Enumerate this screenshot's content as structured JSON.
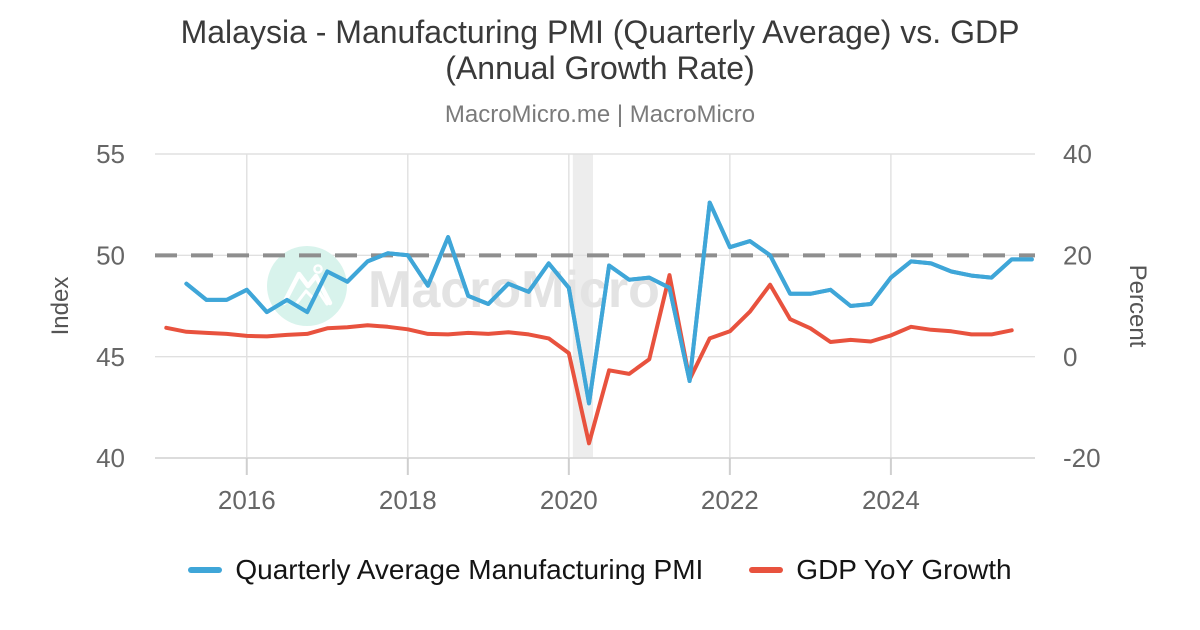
{
  "title": {
    "line1": "Malaysia - Manufacturing PMI (Quarterly Average) vs. GDP",
    "line2": "(Annual Growth Rate)"
  },
  "subtitle": "MacroMicro.me | MacroMicro",
  "watermark": {
    "text": "MacroMicro",
    "logo": "mountain-logo"
  },
  "axes": {
    "left": {
      "label": "Index",
      "ticks": [
        55,
        50,
        45,
        40
      ],
      "range": [
        40,
        55
      ]
    },
    "right": {
      "label": "Percent",
      "ticks": [
        40,
        20,
        0,
        -20
      ],
      "range": [
        -20,
        40
      ]
    },
    "x": {
      "tick_labels": [
        "2016",
        "2018",
        "2020",
        "2022",
        "2024"
      ],
      "tick_years": [
        2016,
        2018,
        2020,
        2022,
        2024
      ],
      "range_years": [
        2014.86,
        2025.79
      ]
    }
  },
  "chart_data": {
    "type": "line",
    "title": "Malaysia - Manufacturing PMI (Quarterly Average) vs. GDP (Annual Growth Rate)",
    "grid": true,
    "legend_position": "bottom",
    "reference_line": {
      "axis": "left",
      "value": 50,
      "style": "dashed"
    },
    "recession_band": {
      "x_from_year": 2020.05,
      "x_to_year": 2020.3
    },
    "series": [
      {
        "name": "Quarterly Average Manufacturing PMI",
        "axis": "left",
        "color": "#3fa6d8",
        "first_quarter": "2015-Q2",
        "x_start_year": 2015.25,
        "x_step_years": 0.25,
        "values": [
          48.6,
          47.8,
          47.8,
          48.3,
          47.2,
          47.8,
          47.2,
          49.2,
          48.7,
          49.7,
          50.1,
          50.0,
          48.5,
          50.9,
          48.0,
          47.6,
          48.6,
          48.2,
          49.6,
          48.4,
          42.7,
          49.5,
          48.8,
          48.9,
          48.4,
          43.8,
          52.6,
          50.4,
          50.7,
          50.0,
          48.1,
          48.1,
          48.3,
          47.5,
          47.6,
          48.9,
          49.7,
          49.6,
          49.2,
          49.0,
          48.9,
          49.8,
          49.8
        ]
      },
      {
        "name": "GDP YoY Growth",
        "axis": "right",
        "color": "#e8523e",
        "first_quarter": "2015-Q1",
        "x_start_year": 2015.0,
        "x_step_years": 0.25,
        "values": [
          5.7,
          4.9,
          4.7,
          4.5,
          4.1,
          4.0,
          4.3,
          4.5,
          5.6,
          5.8,
          6.2,
          5.9,
          5.4,
          4.5,
          4.4,
          4.7,
          4.5,
          4.8,
          4.4,
          3.6,
          0.7,
          -17.1,
          -2.7,
          -3.4,
          -0.5,
          16.1,
          -4.5,
          3.6,
          5.0,
          8.9,
          14.2,
          7.4,
          5.6,
          2.9,
          3.3,
          3.0,
          4.2,
          5.9,
          5.3,
          5.0,
          4.4,
          4.4,
          5.2
        ]
      }
    ]
  },
  "legend": {
    "items": [
      {
        "label": "Quarterly Average Manufacturing PMI",
        "color": "#3fa6d8"
      },
      {
        "label": "GDP YoY Growth",
        "color": "#e8523e"
      }
    ]
  },
  "colors": {
    "pmi_line": "#3fa6d8",
    "gdp_line": "#e8523e",
    "reference_dash": "#8e8e8e",
    "gridline": "#e0e0e0",
    "axis_line": "#d6d6d6",
    "tick_mark": "#cfcfcf",
    "recession_band": "#ededed",
    "tick_text": "#666666",
    "axis_title_text": "#555555",
    "title_text": "#3a3a3a",
    "subtitle_text": "#7b7b7b",
    "legend_text": "#141414",
    "watermark_text": "#e3e3e3",
    "watermark_circle": "#d8f3ec",
    "watermark_glyph": "#ffffff"
  }
}
